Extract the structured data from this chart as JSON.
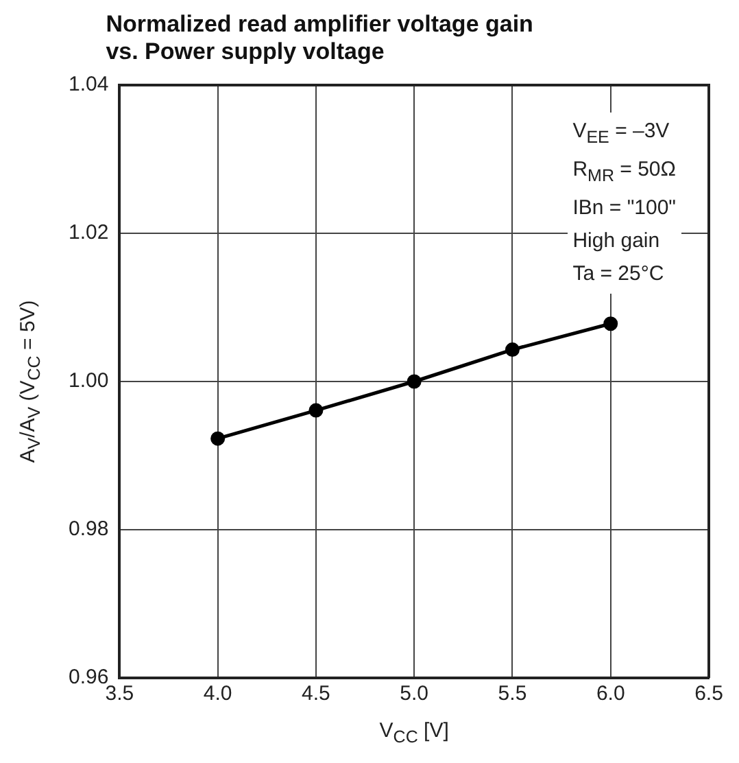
{
  "chart_data": {
    "type": "line",
    "title": "Normalized read amplifier voltage gain\nvs. Power supply voltage",
    "xlabel": "V$_{CC}$ [V]",
    "ylabel": "A$_{V}$/A$_{V}$ (V$_{CC}$ = 5V)",
    "x": [
      4.0,
      4.5,
      5.0,
      5.5,
      6.0
    ],
    "series": [
      {
        "color": "#000000",
        "values": [
          0.9923,
          0.9961,
          1.0,
          1.0043,
          1.0078
        ]
      }
    ],
    "xlim": [
      3.5,
      6.5
    ],
    "xticks": [
      {
        "value": 3.5,
        "label": "3.5"
      },
      {
        "value": 4,
        "label": "4.0"
      },
      {
        "value": 4.5,
        "label": "4.5"
      },
      {
        "value": 5,
        "label": "5.0"
      },
      {
        "value": 5.5,
        "label": "5.5"
      },
      {
        "value": 6,
        "label": "6.0"
      },
      {
        "value": 6.5,
        "label": "6.5"
      }
    ],
    "ylim": [
      0.96,
      1.04
    ],
    "yticks": [
      {
        "value": 0.96,
        "label": "0.96"
      },
      {
        "value": 0.98,
        "label": "0.98"
      },
      {
        "value": 1,
        "label": "1.00"
      },
      {
        "value": 1.02,
        "label": "1.02"
      },
      {
        "value": 1.04,
        "label": "1.04"
      }
    ],
    "annotations": [
      "V$_{EE}$ = –3V",
      "R$_{MR}$ = 50Ω",
      "IBn = \"100\"",
      "High gain",
      "Ta = 25°C"
    ],
    "grid": true,
    "legend": false,
    "marker": "circle",
    "line_style": "solid"
  }
}
